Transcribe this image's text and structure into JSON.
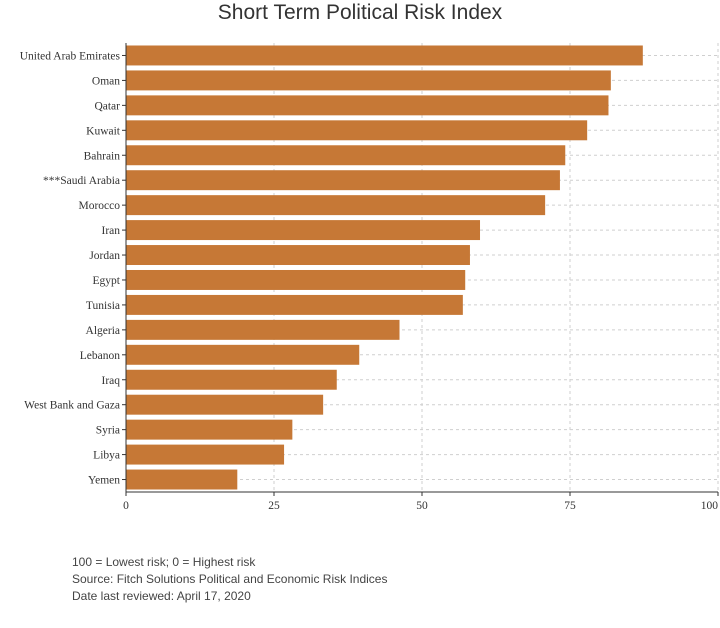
{
  "chart_data": {
    "type": "bar",
    "orientation": "horizontal",
    "title": "Short Term Political Risk Index",
    "categories": [
      "United Arab Emirates",
      "Oman",
      "Qatar",
      "Kuwait",
      "Bahrain",
      "***Saudi Arabia",
      "Morocco",
      "Iran",
      "Jordan",
      "Egypt",
      "Tunisia",
      "Algeria",
      "Lebanon",
      "Iraq",
      "West Bank and Gaza",
      "Syria",
      "Libya",
      "Yemen"
    ],
    "values": [
      87.3,
      81.9,
      81.5,
      77.9,
      74.2,
      73.3,
      70.8,
      59.8,
      58.1,
      57.3,
      56.9,
      46.2,
      39.4,
      35.6,
      33.3,
      28.1,
      26.7,
      18.8
    ],
    "xlim": [
      0,
      100
    ],
    "xticks": [
      "0",
      "25",
      "50",
      "75",
      "100"
    ],
    "grid": true,
    "bar_color": "#c67836"
  },
  "notes": {
    "line1": "100 = Lowest risk; 0 = Highest risk",
    "line2": "Source: Fitch Solutions Political and Economic Risk Indices",
    "line3": "Date last reviewed: April 17, 2020"
  }
}
